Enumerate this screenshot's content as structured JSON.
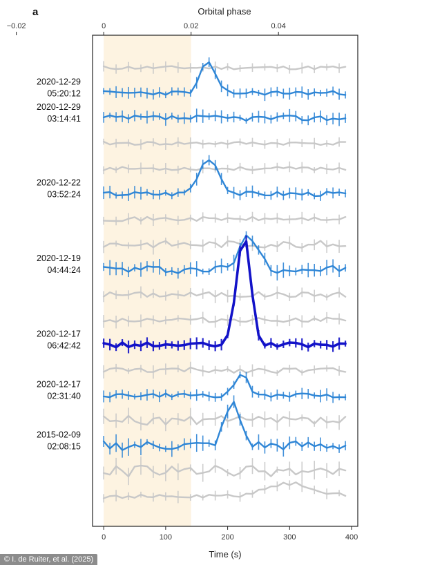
{
  "chart_data": {
    "type": "line",
    "panel_label": "a",
    "title": "",
    "xlabel": "Time (s)",
    "xlim": [
      -18,
      410
    ],
    "x_ticks": [
      0,
      100,
      200,
      300,
      400
    ],
    "x_tick_labels": [
      "0",
      "100",
      "200",
      "300",
      "400"
    ],
    "top_axis": {
      "label": "Orbital phase",
      "ticks": [
        -0.02,
        0,
        0.02,
        0.04
      ],
      "tick_labels": [
        "−0.02",
        "0",
        "0.02",
        "0.04"
      ],
      "seconds_per_phase": 7050
    },
    "highlight_band": {
      "label": "",
      "phase_range": [
        0,
        0.02
      ],
      "color": "#fdf3e1"
    },
    "colors": {
      "gray": "#c8c8c8",
      "blue": "#2f86d6",
      "dark_blue": "#1212c8"
    },
    "series": [
      {
        "name": "trace-1",
        "date_label": "",
        "color": "gray",
        "offset": 0,
        "peak_time": null,
        "peak_amp": 0,
        "peak_width": 0,
        "noise": 2.5,
        "seed": 11
      },
      {
        "name": "2020-12-29 05:20:12",
        "date_label": "2020-12-29\n05:20:12",
        "color": "blue",
        "offset": 1,
        "peak_time": 168,
        "peak_amp": 46,
        "peak_width": 16,
        "noise": 3.0,
        "seed": 23
      },
      {
        "name": "2020-12-29 03:14:41",
        "date_label": "2020-12-29\n03:14:41",
        "color": "blue",
        "offset": 2,
        "peak_time": null,
        "peak_amp": 0,
        "peak_width": 0,
        "noise": 4.0,
        "seed": 37
      },
      {
        "name": "trace-4",
        "date_label": "",
        "color": "gray",
        "offset": 3,
        "peak_time": null,
        "peak_amp": 0,
        "peak_width": 0,
        "noise": 2.5,
        "seed": 41
      },
      {
        "name": "trace-5",
        "date_label": "",
        "color": "gray",
        "offset": 4,
        "peak_time": null,
        "peak_amp": 0,
        "peak_width": 0,
        "noise": 2.5,
        "seed": 53
      },
      {
        "name": "2020-12-22 03:52:24",
        "date_label": "2020-12-22\n03:52:24",
        "color": "blue",
        "offset": 5,
        "peak_time": 170,
        "peak_amp": 52,
        "peak_width": 22,
        "noise": 3.5,
        "seed": 67
      },
      {
        "name": "trace-7",
        "date_label": "",
        "color": "gray",
        "offset": 6,
        "peak_time": null,
        "peak_amp": 0,
        "peak_width": 0,
        "noise": 3.0,
        "seed": 71
      },
      {
        "name": "trace-8",
        "date_label": "",
        "color": "gray",
        "offset": 7,
        "peak_time": null,
        "peak_amp": 0,
        "peak_width": 0,
        "noise": 5.0,
        "seed": 83
      },
      {
        "name": "2020-12-19 04:44:24",
        "date_label": "2020-12-19\n04:44:24",
        "color": "blue",
        "offset": 8,
        "peak_time": 235,
        "peak_amp": 48,
        "peak_width": 22,
        "noise": 6.0,
        "seed": 97
      },
      {
        "name": "trace-10",
        "date_label": "",
        "color": "gray",
        "offset": 9,
        "peak_time": null,
        "peak_amp": 0,
        "peak_width": 0,
        "noise": 4.0,
        "seed": 101
      },
      {
        "name": "trace-11",
        "date_label": "",
        "color": "gray",
        "offset": 10,
        "peak_time": null,
        "peak_amp": 0,
        "peak_width": 0,
        "noise": 3.5,
        "seed": 113
      },
      {
        "name": "2020-12-17 06:42:42",
        "date_label": "2020-12-17\n06:42:42",
        "color": "dark_blue",
        "offset": 11,
        "peak_time": 226,
        "peak_amp": 158,
        "peak_width": 16,
        "noise": 3.5,
        "seed": 127
      },
      {
        "name": "trace-13",
        "date_label": "",
        "color": "gray",
        "offset": 12,
        "peak_time": null,
        "peak_amp": 0,
        "peak_width": 0,
        "noise": 4.0,
        "seed": 131
      },
      {
        "name": "2020-12-17 02:31:40",
        "date_label": "2020-12-17\n02:31:40",
        "color": "blue",
        "offset": 13,
        "peak_time": 222,
        "peak_amp": 32,
        "peak_width": 14,
        "noise": 3.0,
        "seed": 149
      },
      {
        "name": "trace-15",
        "date_label": "",
        "color": "gray",
        "offset": 14,
        "peak_time": null,
        "peak_amp": 0,
        "peak_width": 0,
        "noise": 7.0,
        "seed": 157
      },
      {
        "name": "2015-02-09 02:08:15",
        "date_label": "2015-02-09\n02:08:15",
        "color": "blue",
        "offset": 15,
        "peak_time": 208,
        "peak_amp": 60,
        "peak_width": 18,
        "noise": 7.0,
        "seed": 163
      },
      {
        "name": "trace-17",
        "date_label": "",
        "color": "gray",
        "offset": 16,
        "peak_time": null,
        "peak_amp": 0,
        "peak_width": 0,
        "noise": 8.0,
        "seed": 173
      },
      {
        "name": "trace-18",
        "date_label": "",
        "color": "gray",
        "offset": 17,
        "peak_time": 300,
        "peak_amp": 18,
        "peak_width": 55,
        "noise": 3.0,
        "seed": 181
      }
    ]
  },
  "credit": "© I. de Ruiter, et al. (2025)"
}
